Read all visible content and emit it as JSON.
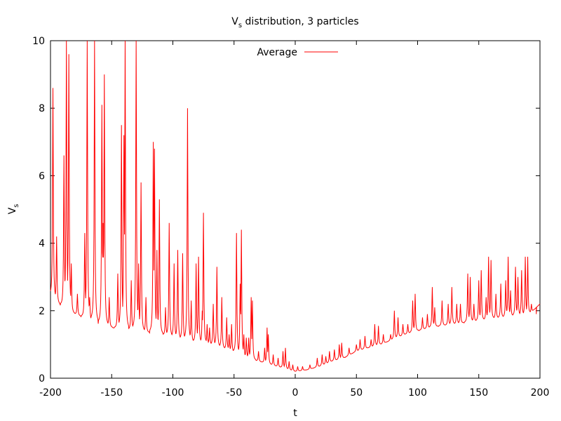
{
  "chart_data": {
    "type": "line",
    "title": {
      "main": "V",
      "sub": "s",
      "rest": " distribution, 3 particles"
    },
    "xlabel": "t",
    "ylabel": {
      "main": "V",
      "sub": "s"
    },
    "xlim": [
      -200,
      200
    ],
    "ylim": [
      0,
      10
    ],
    "x_ticks": [
      -200,
      -150,
      -100,
      -50,
      0,
      50,
      100,
      150,
      200
    ],
    "y_ticks": [
      0,
      2,
      4,
      6,
      8,
      10
    ],
    "grid": false,
    "legend_position": "top-center",
    "series": [
      {
        "name": "Average",
        "color": "#ff0000",
        "baseline": [
          [
            -200,
            2.4
          ],
          [
            -190,
            2.1
          ],
          [
            -180,
            1.9
          ],
          [
            -170,
            1.75
          ],
          [
            -160,
            1.6
          ],
          [
            -150,
            1.5
          ],
          [
            -140,
            1.45
          ],
          [
            -130,
            1.4
          ],
          [
            -120,
            1.35
          ],
          [
            -110,
            1.3
          ],
          [
            -100,
            1.2
          ],
          [
            -90,
            1.1
          ],
          [
            -80,
            1.05
          ],
          [
            -70,
            1.0
          ],
          [
            -60,
            0.9
          ],
          [
            -50,
            0.75
          ],
          [
            -40,
            0.6
          ],
          [
            -30,
            0.5
          ],
          [
            -20,
            0.4
          ],
          [
            -10,
            0.3
          ],
          [
            0,
            0.2
          ],
          [
            10,
            0.25
          ],
          [
            20,
            0.35
          ],
          [
            30,
            0.5
          ],
          [
            40,
            0.6
          ],
          [
            50,
            0.8
          ],
          [
            60,
            0.9
          ],
          [
            70,
            1.0
          ],
          [
            80,
            1.15
          ],
          [
            90,
            1.3
          ],
          [
            100,
            1.4
          ],
          [
            110,
            1.5
          ],
          [
            120,
            1.55
          ],
          [
            130,
            1.6
          ],
          [
            140,
            1.65
          ],
          [
            150,
            1.7
          ],
          [
            160,
            1.75
          ],
          [
            170,
            1.8
          ],
          [
            180,
            1.85
          ],
          [
            190,
            1.85
          ],
          [
            200,
            2.2
          ]
        ],
        "peaks": [
          [
            -198,
            8.6
          ],
          [
            -195,
            4.2
          ],
          [
            -189,
            6.6
          ],
          [
            -187,
            10.0
          ],
          [
            -185,
            9.6
          ],
          [
            -183,
            3.4
          ],
          [
            -178,
            2.5
          ],
          [
            -172,
            4.3
          ],
          [
            -170,
            10.0
          ],
          [
            -168,
            2.4
          ],
          [
            -164,
            10.0
          ],
          [
            -158,
            8.1
          ],
          [
            -157,
            4.6
          ],
          [
            -156,
            9.0
          ],
          [
            -152,
            2.4
          ],
          [
            -145,
            3.1
          ],
          [
            -142,
            7.5
          ],
          [
            -140,
            7.2
          ],
          [
            -139,
            10.0
          ],
          [
            -134,
            2.9
          ],
          [
            -130,
            10.0
          ],
          [
            -128,
            3.4
          ],
          [
            -126,
            5.8
          ],
          [
            -122,
            2.4
          ],
          [
            -116,
            7.0
          ],
          [
            -115,
            6.8
          ],
          [
            -113,
            3.8
          ],
          [
            -111,
            5.3
          ],
          [
            -106,
            2.1
          ],
          [
            -103,
            4.6
          ],
          [
            -99,
            3.4
          ],
          [
            -96,
            3.8
          ],
          [
            -92,
            3.7
          ],
          [
            -88,
            8.0
          ],
          [
            -85,
            2.3
          ],
          [
            -81,
            3.4
          ],
          [
            -79,
            3.6
          ],
          [
            -76,
            2.0
          ],
          [
            -75,
            4.9
          ],
          [
            -72,
            1.6
          ],
          [
            -70,
            1.5
          ],
          [
            -67,
            2.2
          ],
          [
            -64,
            3.3
          ],
          [
            -60,
            2.4
          ],
          [
            -56,
            1.8
          ],
          [
            -54,
            1.3
          ],
          [
            -52,
            1.6
          ],
          [
            -48,
            4.3
          ],
          [
            -45,
            2.8
          ],
          [
            -44,
            4.4
          ],
          [
            -42,
            1.3
          ],
          [
            -40,
            1.2
          ],
          [
            -38,
            1.2
          ],
          [
            -36,
            2.4
          ],
          [
            -35,
            2.3
          ],
          [
            -30,
            0.8
          ],
          [
            -25,
            0.9
          ],
          [
            -23,
            1.5
          ],
          [
            -22,
            1.3
          ],
          [
            -18,
            0.7
          ],
          [
            -14,
            0.6
          ],
          [
            -10,
            0.8
          ],
          [
            -8,
            0.9
          ],
          [
            -5,
            0.5
          ],
          [
            -2,
            0.4
          ],
          [
            2,
            0.35
          ],
          [
            6,
            0.35
          ],
          [
            12,
            0.4
          ],
          [
            18,
            0.6
          ],
          [
            22,
            0.7
          ],
          [
            25,
            0.65
          ],
          [
            28,
            0.8
          ],
          [
            32,
            0.85
          ],
          [
            36,
            1.0
          ],
          [
            38,
            1.05
          ],
          [
            44,
            0.9
          ],
          [
            50,
            1.0
          ],
          [
            53,
            1.15
          ],
          [
            57,
            1.25
          ],
          [
            62,
            1.15
          ],
          [
            65,
            1.6
          ],
          [
            68,
            1.55
          ],
          [
            72,
            1.3
          ],
          [
            78,
            1.3
          ],
          [
            81,
            2.0
          ],
          [
            84,
            1.8
          ],
          [
            88,
            1.6
          ],
          [
            92,
            1.6
          ],
          [
            96,
            2.3
          ],
          [
            98,
            2.5
          ],
          [
            104,
            1.8
          ],
          [
            108,
            1.9
          ],
          [
            112,
            2.7
          ],
          [
            114,
            2.1
          ],
          [
            120,
            2.3
          ],
          [
            125,
            2.2
          ],
          [
            128,
            2.7
          ],
          [
            132,
            2.2
          ],
          [
            135,
            2.2
          ],
          [
            141,
            3.1
          ],
          [
            143,
            3.0
          ],
          [
            146,
            2.2
          ],
          [
            150,
            2.9
          ],
          [
            152,
            3.2
          ],
          [
            156,
            2.4
          ],
          [
            158,
            3.6
          ],
          [
            160,
            3.5
          ],
          [
            164,
            2.5
          ],
          [
            168,
            2.8
          ],
          [
            172,
            2.9
          ],
          [
            174,
            3.6
          ],
          [
            176,
            2.6
          ],
          [
            180,
            3.3
          ],
          [
            182,
            3.0
          ],
          [
            185,
            3.2
          ],
          [
            188,
            3.6
          ],
          [
            190,
            3.6
          ],
          [
            193,
            2.2
          ],
          [
            197,
            1.9
          ]
        ]
      }
    ]
  }
}
